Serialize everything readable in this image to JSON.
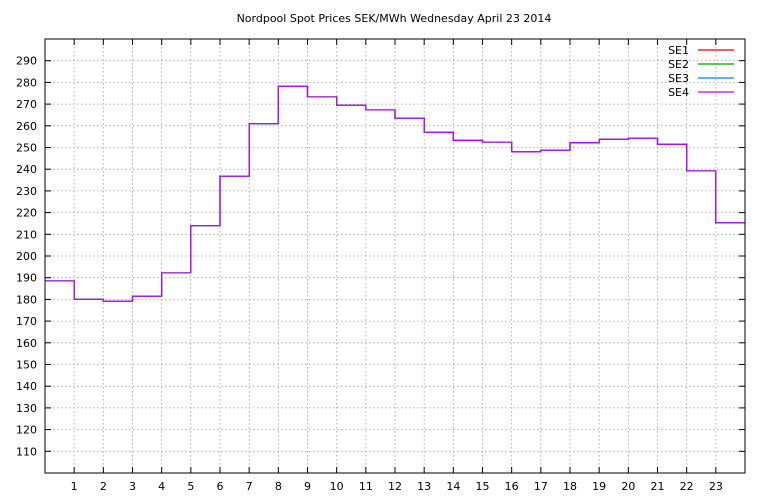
{
  "chart_data": {
    "type": "line",
    "step": true,
    "title": "Nordpool Spot Prices SEK/MWh Wednesday April 23 2014",
    "xlabel": "",
    "ylabel": "",
    "x_ticks": [
      1,
      2,
      3,
      4,
      5,
      6,
      7,
      8,
      9,
      10,
      11,
      12,
      13,
      14,
      15,
      16,
      17,
      18,
      19,
      20,
      21,
      22,
      23
    ],
    "y_ticks": [
      110,
      120,
      130,
      140,
      150,
      160,
      170,
      180,
      190,
      200,
      210,
      220,
      230,
      240,
      250,
      260,
      270,
      280,
      290
    ],
    "xlim": [
      0,
      24
    ],
    "ylim": [
      100,
      300
    ],
    "grid": true,
    "legend_position": "top-right",
    "x": [
      0,
      1,
      2,
      3,
      4,
      5,
      6,
      7,
      8,
      9,
      10,
      11,
      12,
      13,
      14,
      15,
      16,
      17,
      18,
      19,
      20,
      21,
      22,
      23
    ],
    "series": [
      {
        "name": "SE1",
        "color": "#e00000",
        "values": [
          188.5,
          180.0,
          179.2,
          181.5,
          192.2,
          214.0,
          236.8,
          261.0,
          278.2,
          273.3,
          269.5,
          267.3,
          263.5,
          257.0,
          253.3,
          252.5,
          248.0,
          248.8,
          252.2,
          253.8,
          254.3,
          251.5,
          239.2,
          215.3
        ]
      },
      {
        "name": "SE2",
        "color": "#00a000",
        "values": [
          188.5,
          180.0,
          179.2,
          181.5,
          192.2,
          214.0,
          236.8,
          261.0,
          278.2,
          273.3,
          269.5,
          267.3,
          263.5,
          257.0,
          253.3,
          252.5,
          248.0,
          248.8,
          252.2,
          253.8,
          254.3,
          251.5,
          239.2,
          215.3
        ]
      },
      {
        "name": "SE3",
        "color": "#0080ff",
        "values": [
          188.5,
          180.0,
          179.2,
          181.5,
          192.2,
          214.0,
          236.8,
          261.0,
          278.2,
          273.3,
          269.5,
          267.3,
          263.5,
          257.0,
          253.3,
          252.5,
          248.0,
          248.8,
          252.2,
          253.8,
          254.3,
          251.5,
          239.2,
          215.3
        ]
      },
      {
        "name": "SE4",
        "color": "#c000ff",
        "values": [
          188.5,
          180.0,
          179.2,
          181.5,
          192.2,
          214.0,
          236.8,
          261.0,
          278.2,
          273.3,
          269.5,
          267.3,
          263.5,
          257.0,
          253.3,
          252.5,
          248.0,
          248.8,
          252.2,
          253.8,
          254.3,
          251.5,
          239.2,
          215.3
        ]
      }
    ]
  }
}
